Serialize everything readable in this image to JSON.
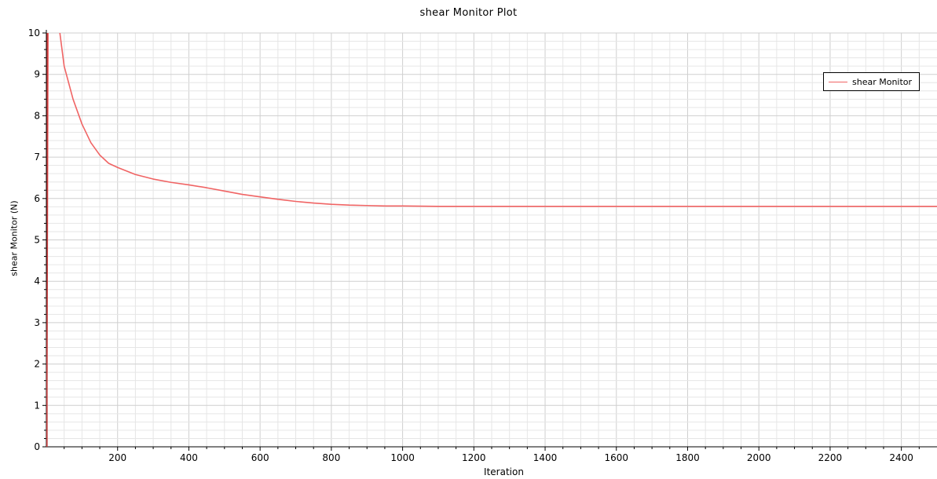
{
  "chart_data": {
    "type": "line",
    "title": "shear Monitor Plot",
    "xlabel": "Iteration",
    "ylabel": "shear Monitor (N)",
    "xlim": [
      0,
      2500
    ],
    "ylim": [
      0,
      10
    ],
    "xticks": [
      200,
      400,
      600,
      800,
      1000,
      1200,
      1400,
      1600,
      1800,
      2000,
      2200,
      2400
    ],
    "yticks": [
      0,
      1,
      2,
      3,
      4,
      5,
      6,
      7,
      8,
      9,
      10
    ],
    "grid": true,
    "legend_position": "top-right",
    "series": [
      {
        "name": "shear Monitor",
        "color": "#f06464",
        "x": [
          1,
          3,
          5,
          10,
          20,
          35,
          50,
          75,
          100,
          125,
          150,
          175,
          200,
          250,
          300,
          350,
          400,
          450,
          500,
          550,
          600,
          650,
          700,
          750,
          800,
          850,
          900,
          950,
          1000,
          1100,
          1200,
          1400,
          1600,
          1800,
          2000,
          2200,
          2400,
          2500
        ],
        "y": [
          0,
          5.0,
          10.2,
          12.0,
          11.2,
          10.2,
          9.2,
          8.4,
          7.8,
          7.35,
          7.05,
          6.85,
          6.75,
          6.58,
          6.47,
          6.39,
          6.33,
          6.26,
          6.18,
          6.1,
          6.04,
          5.98,
          5.93,
          5.89,
          5.86,
          5.84,
          5.83,
          5.82,
          5.82,
          5.81,
          5.81,
          5.81,
          5.81,
          5.81,
          5.81,
          5.81,
          5.81,
          5.81
        ]
      }
    ]
  }
}
